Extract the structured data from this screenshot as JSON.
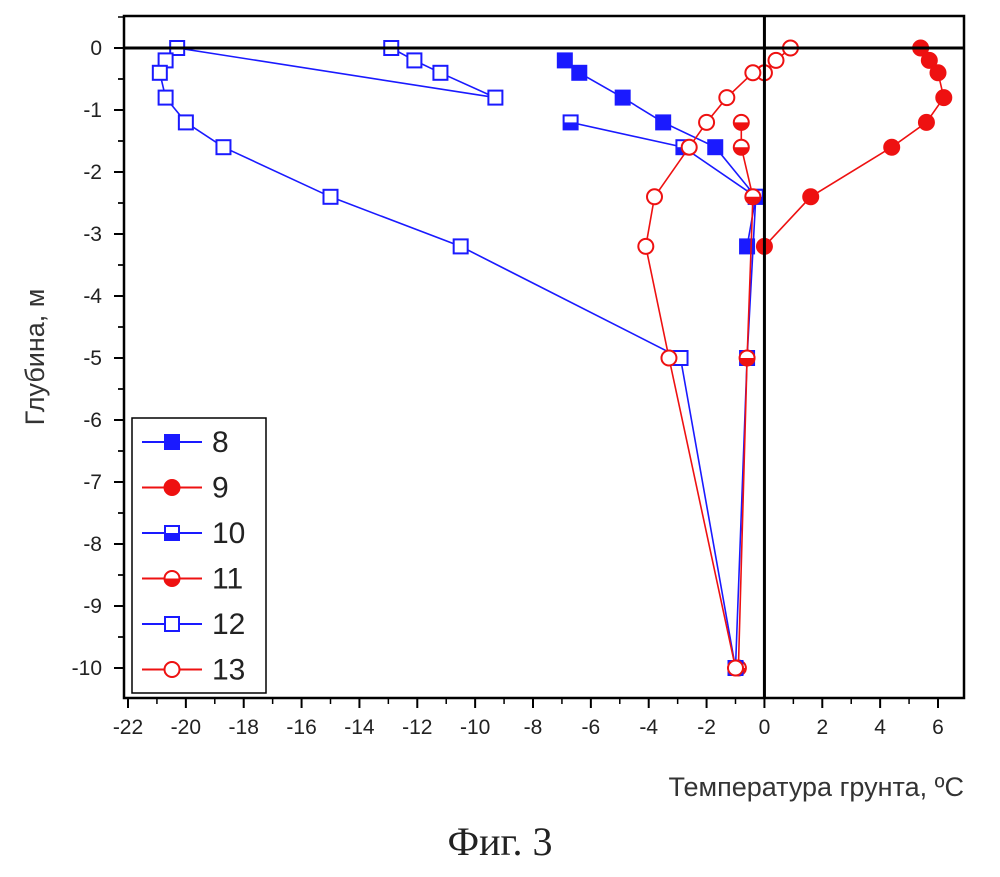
{
  "caption": "Фиг. 3",
  "chart_data": {
    "type": "line",
    "xlabel": "Температура грунта, ºC",
    "ylabel": "Глубина, м",
    "xlim": [
      -22,
      7
    ],
    "ylim": [
      -10.5,
      0.5
    ],
    "x_ticks": [
      -22,
      -20,
      -18,
      -16,
      -14,
      -12,
      -10,
      -8,
      -6,
      -4,
      -2,
      0,
      2,
      4,
      6
    ],
    "y_ticks": [
      0,
      -1,
      -2,
      -3,
      -4,
      -5,
      -6,
      -7,
      -8,
      -9,
      -10
    ],
    "legend_position": "bottom-left",
    "series": [
      {
        "name": "8",
        "color": "#1a1aff",
        "marker": "square-filled",
        "x": [
          -6.9,
          -6.4,
          -4.9,
          -3.5,
          -1.7,
          -0.3,
          -0.6
        ],
        "y": [
          -0.2,
          -0.4,
          -0.8,
          -1.2,
          -1.6,
          -2.4,
          -3.2
        ]
      },
      {
        "name": "9",
        "color": "#ee1111",
        "marker": "circle-filled",
        "x": [
          5.4,
          5.7,
          6.0,
          6.2,
          5.6,
          4.4,
          1.6,
          0.0
        ],
        "y": [
          0,
          -0.2,
          -0.4,
          -0.8,
          -1.2,
          -1.6,
          -2.4,
          -3.2
        ]
      },
      {
        "name": "10",
        "color": "#1a1aff",
        "marker": "square-half",
        "x": [
          -6.7,
          -2.8,
          -0.3,
          -0.6,
          -1.0
        ],
        "y": [
          -1.2,
          -1.6,
          -2.4,
          -5.0,
          -10.0
        ]
      },
      {
        "name": "11",
        "color": "#ee1111",
        "marker": "circle-half",
        "x": [
          -0.8,
          -0.8,
          -0.4,
          -0.6,
          -0.9
        ],
        "y": [
          -1.2,
          -1.6,
          -2.4,
          -5.0,
          -10.0
        ]
      },
      {
        "name": "12",
        "color": "#1a1aff",
        "marker": "square-open",
        "x": [
          -12.9,
          -12.1,
          -11.2,
          -9.3,
          -20.3,
          -20.7,
          -20.9,
          -20.7,
          -20.0,
          -18.7,
          -15.0,
          -10.5,
          -2.9,
          -1.0
        ],
        "y": [
          0,
          -0.2,
          -0.4,
          -0.8,
          0,
          -0.2,
          -0.4,
          -0.8,
          -1.2,
          -1.6,
          -2.4,
          -3.2,
          -5.0,
          -10.0
        ]
      },
      {
        "name": "13",
        "color": "#ee1111",
        "marker": "circle-open",
        "x": [
          0.9,
          0.4,
          0.0,
          -0.4,
          -1.3,
          -2.0,
          -2.6,
          -3.8,
          -4.1,
          -3.3,
          -1.0
        ],
        "y": [
          0,
          -0.2,
          -0.4,
          -0.4,
          -0.8,
          -1.2,
          -1.6,
          -2.4,
          -3.2,
          -5.0,
          -10.0
        ]
      }
    ]
  }
}
